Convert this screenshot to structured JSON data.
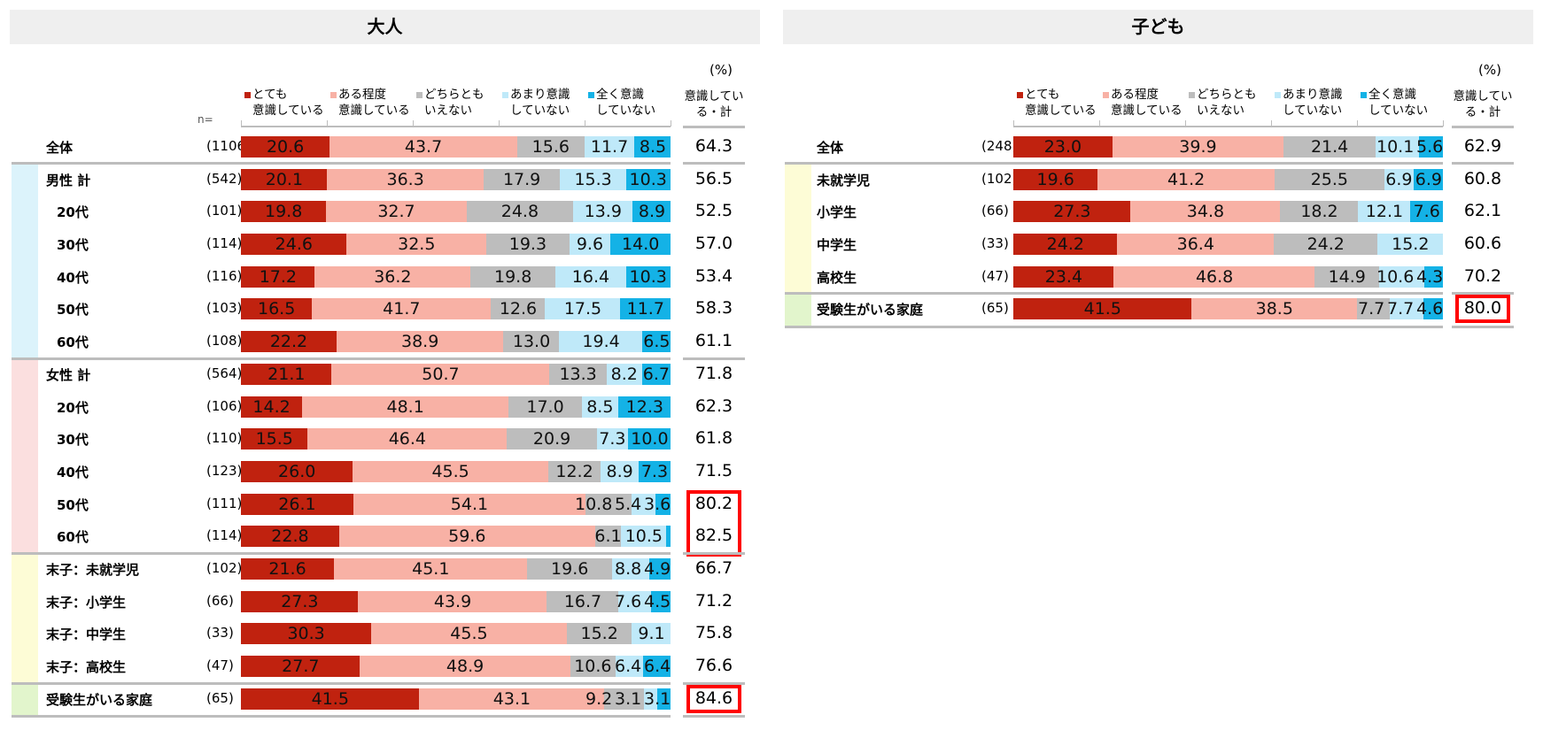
{
  "colors": {
    "very": "#c0220f",
    "some": "#f8b1a5",
    "neither": "#bdbdbd",
    "notmuch": "#bfe9f9",
    "none": "#14b2e6",
    "group_male": "#dcf3fb",
    "group_female": "#fbdfdf",
    "group_youngest": "#fdfcd6",
    "group_exam": "#e2f5cc"
  },
  "chart_data": [
    {
      "type": "bar",
      "stacked": true,
      "orientation": "horizontal",
      "title": "大人",
      "unit": "(%)",
      "n_label": "n=",
      "legend": [
        "とても\n意識している",
        "ある程度\n意識している",
        "どちらとも\nいえない",
        "あまり意識\nしていない",
        "全く意識\nしていない"
      ],
      "total_header": "意識してい\nる・計",
      "rows": [
        {
          "label": "全体",
          "n": "(1106)",
          "values": [
            20.6,
            43.7,
            15.6,
            11.7,
            8.5
          ],
          "total": "64.3",
          "group": "all"
        },
        {
          "label": "男性 計",
          "n": "(542)",
          "values": [
            20.1,
            36.3,
            17.9,
            15.3,
            10.3
          ],
          "total": "56.5",
          "group": "male"
        },
        {
          "label": "20代",
          "n": "(101)",
          "values": [
            19.8,
            32.7,
            24.8,
            13.9,
            8.9
          ],
          "total": "52.5",
          "group": "male",
          "indent": true
        },
        {
          "label": "30代",
          "n": "(114)",
          "values": [
            24.6,
            32.5,
            19.3,
            9.6,
            14.0
          ],
          "total": "57.0",
          "group": "male",
          "indent": true
        },
        {
          "label": "40代",
          "n": "(116)",
          "values": [
            17.2,
            36.2,
            19.8,
            16.4,
            10.3
          ],
          "total": "53.4",
          "group": "male",
          "indent": true
        },
        {
          "label": "50代",
          "n": "(103)",
          "values": [
            16.5,
            41.7,
            12.6,
            17.5,
            11.7
          ],
          "total": "58.3",
          "group": "male",
          "indent": true
        },
        {
          "label": "60代",
          "n": "(108)",
          "values": [
            22.2,
            38.9,
            13.0,
            19.4,
            6.5
          ],
          "total": "61.1",
          "group": "male",
          "indent": true
        },
        {
          "label": "女性 計",
          "n": "(564)",
          "values": [
            21.1,
            50.7,
            13.3,
            8.2,
            6.7
          ],
          "total": "71.8",
          "group": "female"
        },
        {
          "label": "20代",
          "n": "(106)",
          "values": [
            14.2,
            48.1,
            17.0,
            8.5,
            12.3
          ],
          "total": "62.3",
          "group": "female",
          "indent": true
        },
        {
          "label": "30代",
          "n": "(110)",
          "values": [
            15.5,
            46.4,
            20.9,
            7.3,
            10.0
          ],
          "total": "61.8",
          "group": "female",
          "indent": true
        },
        {
          "label": "40代",
          "n": "(123)",
          "values": [
            26.0,
            45.5,
            12.2,
            8.9,
            7.3
          ],
          "total": "71.5",
          "group": "female",
          "indent": true
        },
        {
          "label": "50代",
          "n": "(111)",
          "values": [
            26.1,
            54.1,
            10.8,
            5.4,
            3.6
          ],
          "total": "80.2",
          "group": "female",
          "indent": true,
          "highlight": "top"
        },
        {
          "label": "60代",
          "n": "(114)",
          "values": [
            22.8,
            59.6,
            6.1,
            10.5,
            1.0
          ],
          "hide_last_label": true,
          "total": "82.5",
          "group": "female",
          "indent": true,
          "highlight": "bottom"
        },
        {
          "label": "末子：未就学児",
          "n": "(102)",
          "values": [
            21.6,
            45.1,
            19.6,
            8.8,
            4.9
          ],
          "total": "66.7",
          "group": "youngest"
        },
        {
          "label": "末子：小学生",
          "n": "(66)",
          "values": [
            27.3,
            43.9,
            16.7,
            7.6,
            4.5
          ],
          "total": "71.2",
          "group": "youngest"
        },
        {
          "label": "末子：中学生",
          "n": "(33)",
          "values": [
            30.3,
            45.5,
            15.2,
            9.1,
            0
          ],
          "total": "75.8",
          "group": "youngest"
        },
        {
          "label": "末子：高校生",
          "n": "(47)",
          "values": [
            27.7,
            48.9,
            10.6,
            6.4,
            6.4
          ],
          "total": "76.6",
          "group": "youngest"
        },
        {
          "label": "受験生がいる家庭",
          "n": "(65)",
          "values": [
            41.5,
            43.1,
            9.2,
            3.1,
            3.1
          ],
          "total": "84.6",
          "group": "exam",
          "highlight": "single"
        }
      ]
    },
    {
      "type": "bar",
      "stacked": true,
      "orientation": "horizontal",
      "title": "子ども",
      "unit": "(%)",
      "legend": [
        "とても\n意識している",
        "ある程度\n意識している",
        "どちらとも\nいえない",
        "あまり意識\nしていない",
        "全く意識\nしていない"
      ],
      "total_header": "意識してい\nる・計",
      "rows": [
        {
          "label": "全体",
          "n": "(248)",
          "values": [
            23.0,
            39.9,
            21.4,
            10.1,
            5.6
          ],
          "total": "62.9",
          "group": "all"
        },
        {
          "label": "未就学児",
          "n": "(102)",
          "values": [
            19.6,
            41.2,
            25.5,
            6.9,
            6.9
          ],
          "total": "60.8",
          "group": "youngest"
        },
        {
          "label": "小学生",
          "n": "(66)",
          "values": [
            27.3,
            34.8,
            18.2,
            12.1,
            7.6
          ],
          "total": "62.1",
          "group": "youngest"
        },
        {
          "label": "中学生",
          "n": "(33)",
          "values": [
            24.2,
            36.4,
            24.2,
            15.2,
            0
          ],
          "total": "60.6",
          "group": "youngest"
        },
        {
          "label": "高校生",
          "n": "(47)",
          "values": [
            23.4,
            46.8,
            14.9,
            10.6,
            4.3
          ],
          "total": "70.2",
          "group": "youngest"
        },
        {
          "label": "受験生がいる家庭",
          "n": "(65)",
          "values": [
            41.5,
            38.5,
            7.7,
            7.7,
            4.6
          ],
          "total": "80.0",
          "group": "exam",
          "highlight": "single"
        }
      ]
    }
  ]
}
